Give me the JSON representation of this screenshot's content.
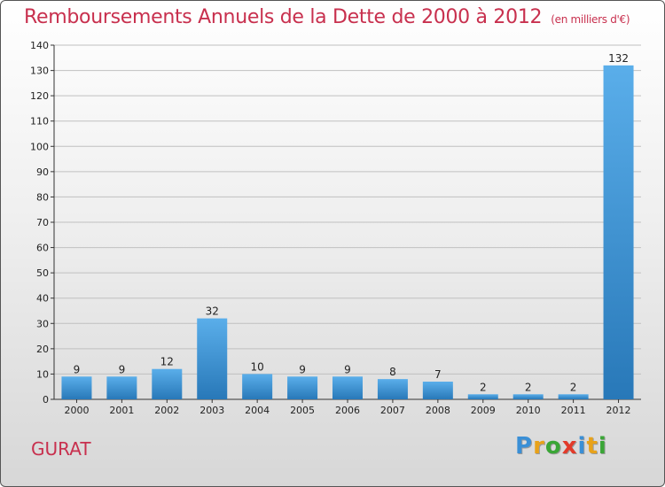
{
  "title": "Remboursements Annuels de la Dette de 2000 à 2012",
  "unit_note": "(en milliers d'€)",
  "commune": "GURAT",
  "logo": {
    "letters": [
      "P",
      "r",
      "o",
      "x",
      "i",
      "t",
      "i"
    ],
    "colors": [
      "#3a8fd6",
      "#e8a21a",
      "#3aa636",
      "#e23a2a",
      "#3a8fd6",
      "#e8a21a",
      "#3aa636"
    ]
  },
  "colors": {
    "bar_top": "#5aaeea",
    "bar_bottom": "#2878b8",
    "title": "#c8304e",
    "grid": "#c0c0c0"
  },
  "chart_data": {
    "type": "bar",
    "title": "Remboursements Annuels de la Dette de 2000 à 2012",
    "xlabel": "",
    "ylabel": "",
    "categories": [
      "2000",
      "2001",
      "2002",
      "2003",
      "2004",
      "2005",
      "2006",
      "2007",
      "2008",
      "2009",
      "2010",
      "2011",
      "2012"
    ],
    "values": [
      9,
      9,
      12,
      32,
      10,
      9,
      9,
      8,
      7,
      2,
      2,
      2,
      132
    ],
    "ylim": [
      0,
      140
    ],
    "yticks": [
      0,
      10,
      20,
      30,
      40,
      50,
      60,
      70,
      80,
      90,
      100,
      110,
      120,
      130,
      140
    ],
    "grid": true
  }
}
